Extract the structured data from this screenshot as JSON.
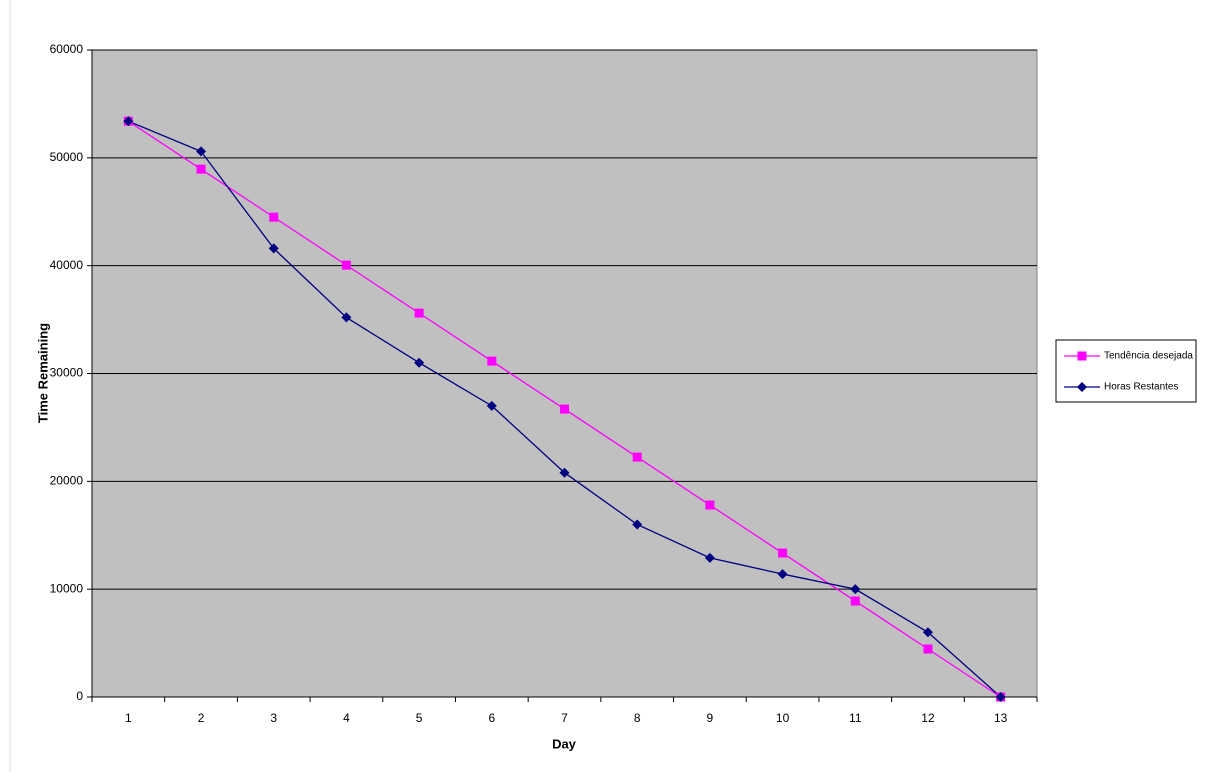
{
  "chart_data": {
    "type": "line",
    "x_label": "Day",
    "y_label": "Time Remaining",
    "categories": [
      "1",
      "2",
      "3",
      "4",
      "5",
      "6",
      "7",
      "8",
      "9",
      "10",
      "11",
      "12",
      "13"
    ],
    "series": [
      {
        "name": "Tendência desejada",
        "color": "#ff00ff",
        "marker": "square",
        "values": [
          53400,
          48950,
          44500,
          40050,
          35600,
          31150,
          26700,
          22250,
          17800,
          13350,
          8900,
          4450,
          0
        ]
      },
      {
        "name": "Horas Restantes",
        "color": "#000080",
        "marker": "diamond",
        "values": [
          53400,
          50600,
          41600,
          35200,
          31000,
          27000,
          20800,
          16000,
          12900,
          11400,
          10000,
          6000,
          0
        ]
      }
    ],
    "ylim": [
      0,
      60000
    ],
    "yticks": [
      0,
      10000,
      20000,
      30000,
      40000,
      50000,
      60000
    ],
    "grid": true,
    "legend": "right",
    "plot_background": "#c0c0c0"
  }
}
